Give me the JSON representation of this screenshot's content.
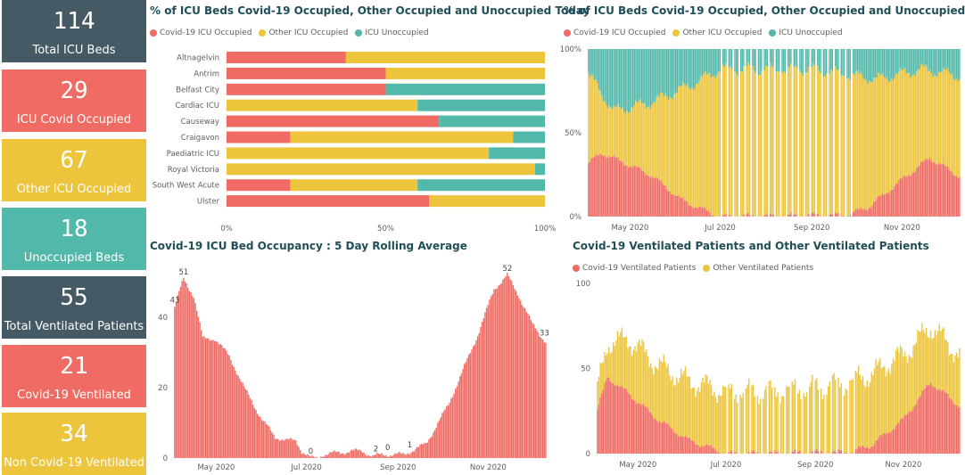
{
  "cards": [
    {
      "value": "114",
      "label": "Total ICU Beds",
      "color": "#455a64"
    },
    {
      "value": "29",
      "label": "ICU Covid Occupied",
      "color": "#ef6b63"
    },
    {
      "value": "67",
      "label": "Other ICU Occupied",
      "color": "#ecc53d"
    },
    {
      "value": "18",
      "label": "Unoccupied Beds",
      "color": "#52b8aa"
    },
    {
      "value": "55",
      "label": "Total Ventilated Patients",
      "color": "#455a64"
    },
    {
      "value": "21",
      "label": "Covid-19 Ventilated",
      "color": "#ef6b63"
    },
    {
      "value": "34",
      "label": "Non Covid-19 Ventilated",
      "color": "#ecc53d"
    }
  ],
  "colors": {
    "covid": "#ef6b63",
    "other": "#ecc53d",
    "unocc": "#52b8aa",
    "grid": "#e1e1e1",
    "axis": "#666666"
  },
  "chart_data": [
    {
      "type": "bar",
      "orientation": "horizontal-stacked-100",
      "title": "% of ICU Beds Covid-19 Occupied, Other Occupied and Unoccupied Today",
      "legend": [
        "Covid-19 ICU Occupied",
        "Other ICU Occupied",
        "ICU Unoccupied"
      ],
      "categories": [
        "Altnagelvin",
        "Antrim",
        "Belfast City",
        "Cardiac ICU",
        "Causeway",
        "Craigavon",
        "Paediatric ICU",
        "Royal Victoria",
        "South West Acute",
        "Ulster"
      ],
      "series": [
        {
          "name": "Covid-19 ICU Occupied",
          "values": [
            37.5,
            50,
            50,
            0,
            66.7,
            20,
            0,
            0,
            20,
            63.6
          ]
        },
        {
          "name": "Other ICU Occupied",
          "values": [
            62.5,
            50,
            0,
            60,
            0,
            70,
            82.4,
            96.9,
            40,
            36.4
          ]
        },
        {
          "name": "ICU Unoccupied",
          "values": [
            0,
            0,
            50,
            40,
            33.3,
            10,
            17.6,
            3.1,
            40,
            0
          ]
        }
      ],
      "xticks": [
        "0%",
        "50%",
        "100%"
      ],
      "xlim": [
        0,
        100
      ]
    },
    {
      "type": "bar",
      "orientation": "vertical-stacked-100",
      "title": "% of ICU Beds Covid-19 Occupied, Other Occupied and Unoccupied",
      "legend": [
        "Covid-19 ICU Occupied",
        "Other ICU Occupied",
        "ICU Unoccupied"
      ],
      "x_range": [
        "2020-04-03",
        "2020-12-10"
      ],
      "xticks": [
        "May 2020",
        "Jul 2020",
        "Sep 2020",
        "Nov 2020"
      ],
      "yticks": [
        "0%",
        "50%",
        "100%"
      ],
      "ylim": [
        0,
        100
      ],
      "covid_pct_keypoints": [
        [
          "2020-04-03",
          32
        ],
        [
          "2020-04-12",
          38
        ],
        [
          "2020-04-25",
          33
        ],
        [
          "2020-05-15",
          25
        ],
        [
          "2020-06-05",
          10
        ],
        [
          "2020-06-25",
          2
        ],
        [
          "2020-07-01",
          0
        ],
        [
          "2020-09-25",
          1
        ],
        [
          "2020-10-10",
          6
        ],
        [
          "2020-11-01",
          22
        ],
        [
          "2020-11-20",
          35
        ],
        [
          "2020-12-10",
          24
        ]
      ],
      "unoccupied_pct_keypoints": [
        [
          "2020-04-03",
          15
        ],
        [
          "2020-04-20",
          37
        ],
        [
          "2020-05-15",
          32
        ],
        [
          "2020-06-15",
          20
        ],
        [
          "2020-07-01",
          12
        ],
        [
          "2020-09-01",
          12
        ],
        [
          "2020-10-15",
          18
        ],
        [
          "2020-11-15",
          12
        ],
        [
          "2020-12-10",
          16
        ]
      ]
    },
    {
      "type": "bar",
      "orientation": "vertical",
      "title": "Covid-19 ICU Bed Occupancy : 5 Day Rolling Average",
      "x_range": [
        "2020-04-03",
        "2020-12-10"
      ],
      "xticks": [
        "May 2020",
        "Jul 2020",
        "Sep 2020",
        "Nov 2020"
      ],
      "yticks": [
        "0",
        "20",
        "40"
      ],
      "ylim": [
        0,
        55
      ],
      "keypoints": [
        [
          "2020-04-03",
          43
        ],
        [
          "2020-04-09",
          51
        ],
        [
          "2020-04-16",
          46
        ],
        [
          "2020-04-22",
          34
        ],
        [
          "2020-04-30",
          34
        ],
        [
          "2020-05-10",
          29
        ],
        [
          "2020-05-20",
          20
        ],
        [
          "2020-06-01",
          11
        ],
        [
          "2020-06-10",
          6
        ],
        [
          "2020-06-18",
          5
        ],
        [
          "2020-06-24",
          5
        ],
        [
          "2020-06-28",
          2
        ],
        [
          "2020-07-04",
          0
        ],
        [
          "2020-07-08",
          0
        ],
        [
          "2020-07-12",
          1
        ],
        [
          "2020-08-01",
          2
        ],
        [
          "2020-08-08",
          2
        ],
        [
          "2020-08-15",
          0.5
        ],
        [
          "2020-08-22",
          1
        ],
        [
          "2020-09-05",
          1
        ],
        [
          "2020-09-20",
          4
        ],
        [
          "2020-10-05",
          15
        ],
        [
          "2020-10-25",
          35
        ],
        [
          "2020-11-05",
          48
        ],
        [
          "2020-11-14",
          52
        ],
        [
          "2020-11-22",
          46
        ],
        [
          "2020-12-01",
          38
        ],
        [
          "2020-12-10",
          33
        ]
      ],
      "data_labels": [
        {
          "x": "2020-04-03",
          "text": "43"
        },
        {
          "x": "2020-04-09",
          "text": "51"
        },
        {
          "x": "2020-07-04",
          "text": "0"
        },
        {
          "x": "2020-08-17",
          "text": "2"
        },
        {
          "x": "2020-08-25",
          "text": "0"
        },
        {
          "x": "2020-09-09",
          "text": "1"
        },
        {
          "x": "2020-11-14",
          "text": "52"
        },
        {
          "x": "2020-12-09",
          "text": "33"
        }
      ]
    },
    {
      "type": "bar",
      "orientation": "vertical-stacked",
      "title": "Covid-19 Ventilated Patients and Other Ventilated Patients",
      "legend": [
        "Covid-19 Ventilated Patients",
        "Other Ventilated Patients"
      ],
      "x_range": [
        "2020-04-03",
        "2020-12-10"
      ],
      "xticks": [
        "May 2020",
        "Jul 2020",
        "Sep 2020",
        "Nov 2020"
      ],
      "yticks": [
        "0",
        "50",
        "100"
      ],
      "ylim": [
        0,
        100
      ],
      "covid_keypoints": [
        [
          "2020-04-03",
          26
        ],
        [
          "2020-04-10",
          45
        ],
        [
          "2020-04-25",
          35
        ],
        [
          "2020-05-15",
          20
        ],
        [
          "2020-06-05",
          8
        ],
        [
          "2020-06-25",
          2
        ],
        [
          "2020-07-01",
          0
        ],
        [
          "2020-09-25",
          1
        ],
        [
          "2020-10-10",
          5
        ],
        [
          "2020-11-01",
          20
        ],
        [
          "2020-11-20",
          42
        ],
        [
          "2020-12-10",
          28
        ]
      ],
      "other_keypoints": [
        [
          "2020-04-03",
          12
        ],
        [
          "2020-04-12",
          22
        ],
        [
          "2020-04-25",
          32
        ],
        [
          "2020-05-15",
          32
        ],
        [
          "2020-06-10",
          35
        ],
        [
          "2020-07-01",
          36
        ],
        [
          "2020-08-01",
          36
        ],
        [
          "2020-09-01",
          38
        ],
        [
          "2020-10-01",
          42
        ],
        [
          "2020-10-25",
          40
        ],
        [
          "2020-11-10",
          35
        ],
        [
          "2020-11-25",
          32
        ],
        [
          "2020-12-10",
          30
        ]
      ]
    }
  ]
}
